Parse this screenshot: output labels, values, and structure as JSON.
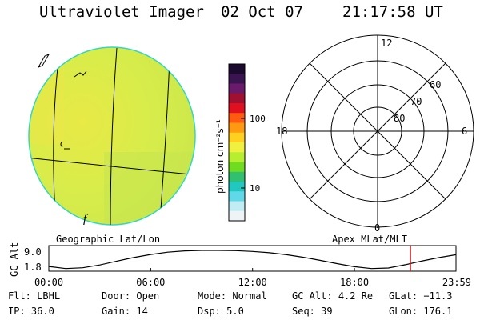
{
  "header": {
    "title": "Ultraviolet Imager",
    "date": "02 Oct 07",
    "time": "21:17:58 UT"
  },
  "colorbar": {
    "unit_label": "photon cm⁻²s⁻¹",
    "ticks": [
      "100",
      "10"
    ],
    "colors": [
      "#1a0a2e",
      "#3a1450",
      "#6a1a6a",
      "#a01030",
      "#e01020",
      "#ff5a10",
      "#ff9a10",
      "#ffd020",
      "#f0f040",
      "#b8ee30",
      "#70dc20",
      "#30c070",
      "#20c8c0",
      "#60d8e8",
      "#c0ecf4",
      "#eef4f6"
    ]
  },
  "left_map": {
    "label": "Geographic Lat/Lon",
    "limb_color": "#30d8c0",
    "fill_colors": [
      "#d6ec4a",
      "#e8ea46",
      "#c9e64c"
    ],
    "feature_char": "f"
  },
  "right_map": {
    "label": "Apex MLat/MLT",
    "mlt_labels": {
      "top": "12",
      "left": "18",
      "right": "6",
      "bottom": "0"
    },
    "lat_labels": [
      "60",
      "70",
      "80"
    ]
  },
  "altitude_panel": {
    "ylabel": "GC Alt",
    "yticks": [
      "9.0",
      "1.8"
    ],
    "xticks": [
      "00:00",
      "06:00",
      "12:00",
      "18:00",
      "23:59"
    ],
    "current_marker_color": "#d81010"
  },
  "chart_data": {
    "type": "line",
    "title": "",
    "xlabel": "",
    "ylabel": "GC Alt",
    "x_hours": [
      0,
      1,
      2,
      3,
      4,
      5,
      6,
      7,
      8,
      9,
      10,
      11,
      12,
      13,
      14,
      15,
      16,
      17,
      18,
      19,
      20,
      21,
      22,
      23,
      23.98
    ],
    "values": [
      2.7,
      1.9,
      2.2,
      3.3,
      4.8,
      6.2,
      7.4,
      8.3,
      8.8,
      9.0,
      9.0,
      8.9,
      8.6,
      8.1,
      7.3,
      6.3,
      5.1,
      3.8,
      2.6,
      1.9,
      2.1,
      3.4,
      4.9,
      6.2,
      7.3
    ],
    "ylim": [
      1.8,
      9.0
    ],
    "xlim": [
      0,
      23.98
    ],
    "current_time_hours": 21.3
  },
  "info": {
    "row1": [
      {
        "label": "Flt:",
        "value": "LBHL"
      },
      {
        "label": "Door:",
        "value": "Open"
      },
      {
        "label": "Mode:",
        "value": "Normal"
      },
      {
        "label": "GC Alt:",
        "value": "4.2 Re"
      },
      {
        "label": "GLat:",
        "value": "−11.3"
      }
    ],
    "row2": [
      {
        "label": "IP:",
        "value": "36.0"
      },
      {
        "label": "Gain:",
        "value": "14"
      },
      {
        "label": "Dsp:",
        "value": "5.0"
      },
      {
        "label": "Seq:",
        "value": "39"
      },
      {
        "label": "GLon:",
        "value": "176.1"
      }
    ]
  }
}
